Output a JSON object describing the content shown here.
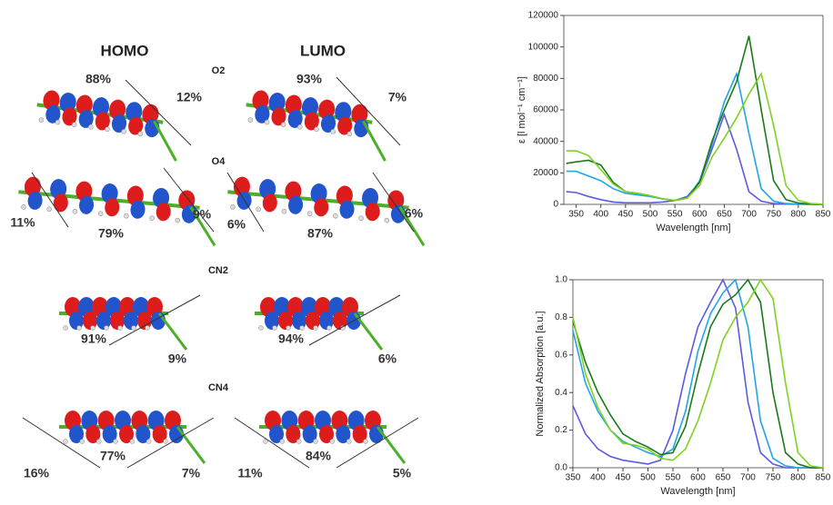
{
  "orbitals": {
    "headers": [
      "HOMO",
      "LUMO"
    ],
    "molecules": [
      {
        "name": "O2",
        "labels": [
          "88%",
          "12%",
          "93%",
          "7%"
        ]
      },
      {
        "name": "O4",
        "labels": [
          "11%",
          "79%",
          "9%",
          "6%",
          "87%",
          "6%"
        ]
      },
      {
        "name": "CN2",
        "labels": [
          "91%",
          "9%",
          "94%",
          "6%"
        ]
      },
      {
        "name": "CN4",
        "labels": [
          "16%",
          "77%",
          "7%",
          "11%",
          "84%",
          "5%"
        ]
      }
    ]
  },
  "chart_data": [
    {
      "type": "line",
      "xlabel": "Wavelength [nm]",
      "ylabel": "ε [l mol⁻¹ cm⁻¹]",
      "x": [
        330,
        350,
        375,
        400,
        425,
        450,
        475,
        500,
        525,
        550,
        575,
        600,
        625,
        650,
        675,
        700,
        725,
        750,
        775,
        800,
        825,
        850
      ],
      "series": [
        {
          "color": "#5b5be0",
          "values": [
            8000,
            7500,
            5000,
            3000,
            1500,
            1000,
            1000,
            1000,
            1500,
            2500,
            5000,
            14000,
            35000,
            57000,
            35000,
            8000,
            2000,
            500,
            200,
            100,
            0,
            0
          ]
        },
        {
          "color": "#22a4e8",
          "values": [
            21000,
            21000,
            18000,
            15000,
            10000,
            7000,
            6000,
            5000,
            3500,
            2500,
            4000,
            15000,
            38000,
            65000,
            83000,
            45000,
            10000,
            2000,
            500,
            200,
            100,
            0
          ]
        },
        {
          "color": "#1a7a1a",
          "values": [
            26000,
            27000,
            28000,
            25000,
            14000,
            8000,
            7000,
            5500,
            3500,
            2500,
            4000,
            14000,
            40000,
            60000,
            78000,
            107000,
            60000,
            15000,
            3000,
            800,
            200,
            0
          ]
        },
        {
          "color": "#7ed321",
          "values": [
            34000,
            34000,
            31000,
            22000,
            13000,
            8000,
            7000,
            5500,
            3500,
            2500,
            4000,
            12000,
            30000,
            42000,
            55000,
            70000,
            83000,
            50000,
            12000,
            2500,
            600,
            100
          ]
        }
      ],
      "xlim": [
        325,
        850
      ],
      "xticks": [
        350,
        400,
        450,
        500,
        550,
        600,
        650,
        700,
        750,
        800,
        850
      ],
      "ylim": [
        0,
        120000
      ],
      "yticks": [
        0,
        20000,
        40000,
        60000,
        80000,
        100000,
        120000
      ]
    },
    {
      "type": "line",
      "xlabel": "Wavelength [nm]",
      "ylabel": "Normalized Absorption [a.u.]",
      "x": [
        350,
        375,
        400,
        425,
        450,
        475,
        500,
        525,
        550,
        575,
        600,
        625,
        650,
        675,
        700,
        725,
        750,
        775,
        800,
        825,
        850
      ],
      "series": [
        {
          "color": "#5b5be0",
          "values": [
            0.33,
            0.18,
            0.1,
            0.06,
            0.04,
            0.03,
            0.02,
            0.04,
            0.2,
            0.5,
            0.75,
            0.88,
            1.0,
            0.85,
            0.35,
            0.08,
            0.02,
            0.0,
            0.0,
            0.0,
            0.0
          ]
        },
        {
          "color": "#22a4e8",
          "values": [
            0.73,
            0.45,
            0.3,
            0.2,
            0.14,
            0.11,
            0.08,
            0.06,
            0.1,
            0.3,
            0.62,
            0.82,
            0.93,
            1.0,
            0.75,
            0.25,
            0.05,
            0.01,
            0.0,
            0.0,
            0.0
          ]
        },
        {
          "color": "#1a7a1a",
          "values": [
            0.78,
            0.56,
            0.4,
            0.28,
            0.18,
            0.14,
            0.11,
            0.07,
            0.08,
            0.22,
            0.5,
            0.75,
            0.87,
            0.92,
            1.0,
            0.88,
            0.4,
            0.08,
            0.02,
            0.0,
            0.0
          ]
        },
        {
          "color": "#7ed321",
          "values": [
            0.8,
            0.5,
            0.32,
            0.2,
            0.13,
            0.12,
            0.1,
            0.05,
            0.04,
            0.1,
            0.25,
            0.45,
            0.68,
            0.8,
            0.88,
            1.0,
            0.9,
            0.45,
            0.08,
            0.01,
            0.0
          ]
        }
      ],
      "xlim": [
        350,
        850
      ],
      "xticks": [
        350,
        400,
        450,
        500,
        550,
        600,
        650,
        700,
        750,
        800,
        850
      ],
      "ylim": [
        0,
        1.0
      ],
      "yticks": [
        {
          "value": 0,
          "label": "0.0"
        },
        0.2,
        0.4,
        0.6,
        0.8,
        {
          "value": 1,
          "label": "1.0"
        }
      ]
    }
  ]
}
